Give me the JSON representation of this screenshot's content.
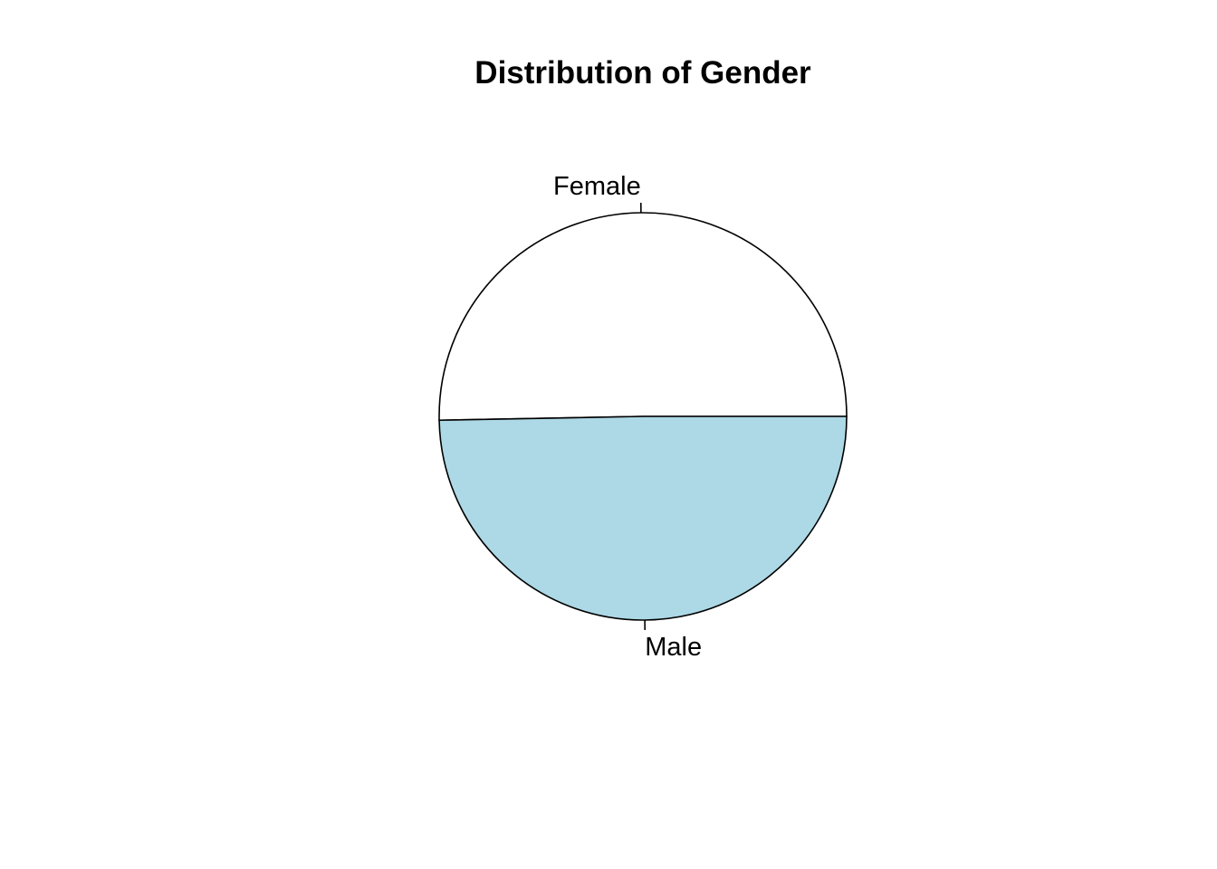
{
  "chart_data": {
    "type": "pie",
    "title": "Distribution of Gender",
    "slices": [
      {
        "label": "Female",
        "value": 50.3,
        "color": "#FFFFFF"
      },
      {
        "label": "Male",
        "value": 49.7,
        "color": "#ADD8E6"
      }
    ],
    "start_angle": "0 degrees (3 o'clock)",
    "direction": "counterclockwise",
    "border_color": "#000000",
    "legend": "none"
  }
}
